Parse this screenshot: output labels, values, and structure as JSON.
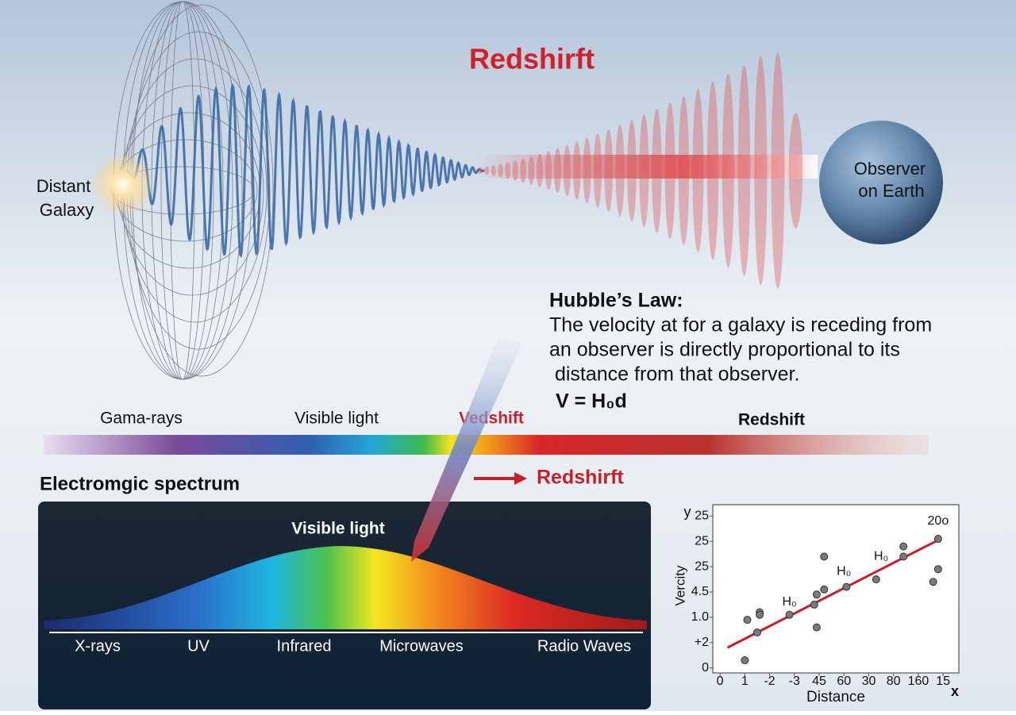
{
  "title": "Redshirft",
  "source": [
    "Distant",
    "Galaxy"
  ],
  "observer": [
    "Observer",
    "on Earth"
  ],
  "hubble": {
    "heading": "Hubble’s Law:",
    "lines": [
      "The velocity at for a galaxy is receding from",
      "an observer is directly proportional to its",
      " distance from that observer."
    ],
    "formula": "V = H₀d"
  },
  "band_labels": [
    "Gama-rays",
    "Visible light",
    "Vedshift",
    "Redshift"
  ],
  "spectrum_title": "Electromgic spectrum",
  "arrow_label": "Redshirft",
  "panel": {
    "peak_label": "Visible light",
    "axis_labels": [
      "X-rays",
      "UV",
      "Infrared",
      "Microwaves",
      "Radio Waves"
    ]
  },
  "chart_data": {
    "type": "scatter",
    "ylabel": "Vercity",
    "xlabel": "Distance",
    "y_symbol": "y",
    "x_symbol": "x",
    "xlim": [
      -0.1,
      9.7
    ],
    "ylim": [
      -0.2,
      6.45
    ],
    "xticks": [
      0,
      1,
      {
        "value": 2,
        "label": "-2"
      },
      {
        "value": 3,
        "label": "-3"
      },
      {
        "value": 4,
        "label": "45"
      },
      {
        "value": 5,
        "label": "60"
      },
      {
        "value": 6,
        "label": "30"
      },
      {
        "value": 7,
        "label": "80"
      },
      {
        "value": 8,
        "label": "160"
      },
      {
        "value": 9,
        "label": "15"
      }
    ],
    "yticks": [
      0,
      {
        "value": 1,
        "label": "+2"
      },
      {
        "value": 2,
        "label": "1.0"
      },
      {
        "value": 3,
        "label": "4.5"
      },
      {
        "value": 4,
        "label": "25"
      },
      {
        "value": 5,
        "label": "25"
      },
      {
        "value": 6,
        "label": "25"
      }
    ],
    "x": [
      1.0,
      1.1,
      1.6,
      1.6,
      1.5,
      2.8,
      3.9,
      3.8,
      3.9,
      4.2,
      4.2,
      5.1,
      6.3,
      7.4,
      7.4,
      8.8,
      8.8,
      8.6
    ],
    "series": [
      {
        "color": "#7a7a7a",
        "values": [
          0.3,
          1.9,
          2.2,
          2.1,
          1.4,
          2.1,
          2.9,
          2.5,
          1.6,
          3.1,
          4.4,
          3.2,
          3.5,
          4.8,
          4.4,
          5.1,
          3.9,
          3.4
        ]
      }
    ],
    "fit": {
      "x": [
        0.3,
        8.9
      ],
      "values": [
        0.8,
        5.1
      ],
      "color": "#c8202a"
    },
    "annotations": [
      {
        "text": "H₀",
        "x": 2.8,
        "y": 2.6
      },
      {
        "text": "H₀",
        "x": 5.0,
        "y": 3.8
      },
      {
        "text": "H₀",
        "x": 6.5,
        "y": 4.4
      },
      {
        "text": "20o",
        "x": 8.8,
        "y": 5.8
      }
    ]
  }
}
